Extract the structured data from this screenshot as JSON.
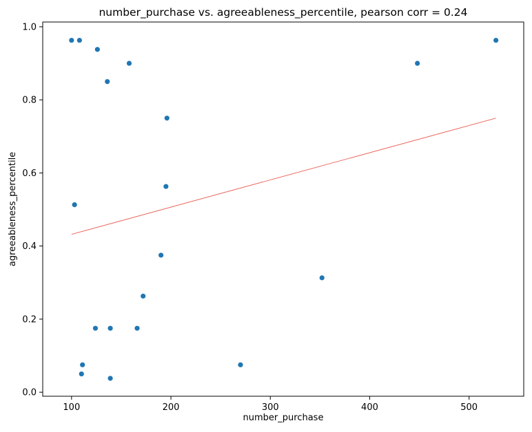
{
  "chart_data": {
    "type": "scatter",
    "title": "number_purchase vs. agreeableness_percentile, pearson corr = 0.24",
    "xlabel": "number_purchase",
    "ylabel": "agreeableness_percentile",
    "xlim": [
      71,
      555
    ],
    "ylim": [
      -0.011,
      1.013
    ],
    "xticks": [
      100,
      200,
      300,
      400,
      500
    ],
    "yticks": [
      0.0,
      0.2,
      0.4,
      0.6,
      0.8,
      1.0
    ],
    "xtick_labels": [
      "100",
      "200",
      "300",
      "400",
      "500"
    ],
    "ytick_labels": [
      "0.0",
      "0.2",
      "0.4",
      "0.6",
      "0.8",
      "1.0"
    ],
    "grid": false,
    "point_color": "#1f77b4",
    "points": [
      {
        "x": 100,
        "y": 0.963
      },
      {
        "x": 108,
        "y": 0.963
      },
      {
        "x": 126,
        "y": 0.938
      },
      {
        "x": 158,
        "y": 0.9
      },
      {
        "x": 136,
        "y": 0.85
      },
      {
        "x": 196,
        "y": 0.75
      },
      {
        "x": 195,
        "y": 0.563
      },
      {
        "x": 103,
        "y": 0.513
      },
      {
        "x": 190,
        "y": 0.375
      },
      {
        "x": 172,
        "y": 0.263
      },
      {
        "x": 124,
        "y": 0.175
      },
      {
        "x": 139,
        "y": 0.175
      },
      {
        "x": 166,
        "y": 0.175
      },
      {
        "x": 111,
        "y": 0.075
      },
      {
        "x": 110,
        "y": 0.05
      },
      {
        "x": 139,
        "y": 0.038
      },
      {
        "x": 270,
        "y": 0.075
      },
      {
        "x": 352,
        "y": 0.313
      },
      {
        "x": 448,
        "y": 0.9
      },
      {
        "x": 527,
        "y": 0.963
      }
    ],
    "trend_line": {
      "color": "#e8483c",
      "x": [
        100,
        527
      ],
      "y": [
        0.432,
        0.75
      ]
    }
  }
}
